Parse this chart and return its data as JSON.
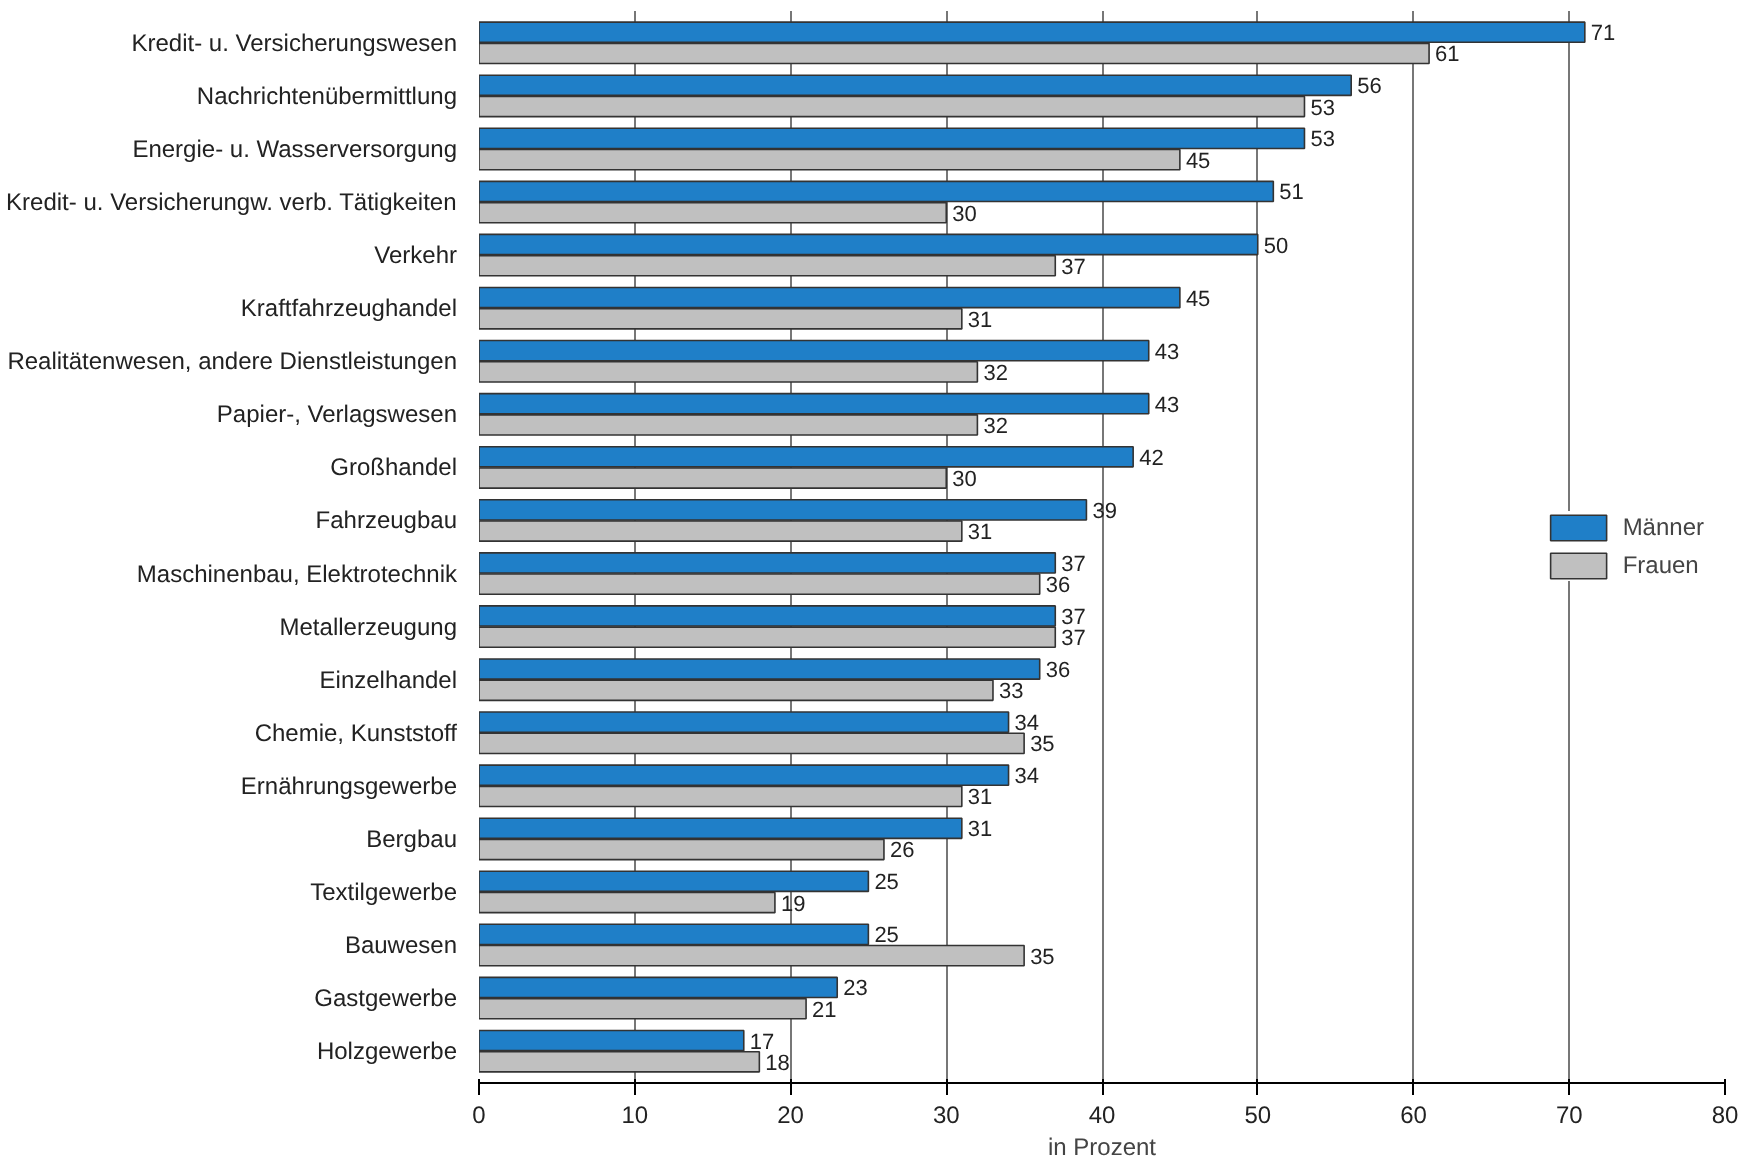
{
  "chart_data": {
    "type": "bar",
    "orientation": "horizontal",
    "xlabel": "in Prozent",
    "categories": [
      "Kredit- u. Versicherungswesen",
      "Nachrichtenübermittlung",
      "Energie- u. Wasserversorgung",
      "Kredit- u. Versicherungw. verb. Tätigkeiten",
      "Verkehr",
      "Kraftfahrzeughandel",
      "Realitätenwesen, andere Dienstleistungen",
      "Papier-, Verlagswesen",
      "Großhandel",
      "Fahrzeugbau",
      "Maschinenbau, Elektrotechnik",
      "Metallerzeugung",
      "Einzelhandel",
      "Chemie, Kunststoff",
      "Ernährungsgewerbe",
      "Bergbau",
      "Textilgewerbe",
      "Bauwesen",
      "Gastgewerbe",
      "Holzgewerbe"
    ],
    "series": [
      {
        "name": "Männer",
        "color": "#1f7fc8",
        "values": [
          71,
          56,
          53,
          51,
          50,
          45,
          43,
          43,
          42,
          39,
          37,
          37,
          36,
          34,
          34,
          31,
          25,
          25,
          23,
          17
        ]
      },
      {
        "name": "Frauen",
        "color": "#c0c0c0",
        "values": [
          61,
          53,
          45,
          30,
          37,
          31,
          32,
          32,
          30,
          31,
          36,
          37,
          33,
          35,
          31,
          26,
          19,
          35,
          21,
          18
        ]
      }
    ],
    "xlim": [
      0,
      80
    ],
    "xticks": [
      0,
      10,
      20,
      30,
      40,
      50,
      60,
      70,
      80
    ],
    "grid": "x",
    "legend": "right",
    "data_labels": true
  }
}
